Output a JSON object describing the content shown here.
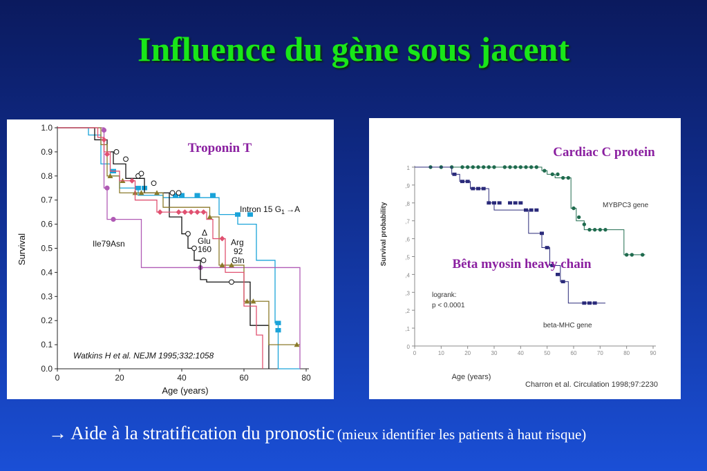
{
  "slide": {
    "title": "Influence du gène sous jacent",
    "footer_main": "→ Aide à la stratification du pronostic",
    "footer_sub": "(mieux identifier les patients à haut risque)"
  },
  "chart_data": [
    {
      "type": "line",
      "title": "Troponin T",
      "xlabel": "Age (years)",
      "ylabel": "Survival",
      "xlim": [
        0,
        80
      ],
      "ylim": [
        0,
        1
      ],
      "x_ticks": [
        0,
        20,
        40,
        60,
        80
      ],
      "x_tick_labels": [
        "0",
        "20",
        "40",
        "60",
        "80"
      ],
      "y_ticks": [
        0,
        0.1,
        0.2,
        0.3,
        0.4,
        0.5,
        0.6,
        0.7,
        0.8,
        0.9,
        1.0
      ],
      "y_tick_labels": [
        "0.0",
        "0.1",
        "0.2",
        "0.3",
        "0.4",
        "0.5",
        "0.6",
        "0.7",
        "0.8",
        "0.9",
        "1.0"
      ],
      "annotations": {
        "ile": "Ile79Asn",
        "delta": "Δ",
        "glu1": "Glu",
        "glu2": "160",
        "arg1": "Arg",
        "arg2": "92",
        "arg3": "Gln",
        "intron": "Intron 15 G",
        "intron_sub": "1",
        "intron_end": "→A",
        "citation": "Watkins H et al. NEJM 1995;332:1058"
      },
      "series": [
        {
          "name": "Intron 15 G1→A",
          "color": "#1aa3d9",
          "marker": "square",
          "x": [
            0,
            10,
            10,
            14,
            14,
            17,
            17,
            20,
            20,
            26,
            26,
            34,
            34,
            52,
            52,
            58,
            58,
            64,
            64,
            70,
            70,
            71,
            71,
            78
          ],
          "y": [
            1.0,
            1.0,
            0.97,
            0.97,
            0.85,
            0.85,
            0.8,
            0.8,
            0.75,
            0.75,
            0.72,
            0.72,
            0.71,
            0.71,
            0.64,
            0.64,
            0.6,
            0.6,
            0.45,
            0.45,
            0.19,
            0.19,
            0.0,
            0.0
          ],
          "marker_x": [
            18,
            26,
            28,
            38,
            40,
            45,
            50,
            58,
            62,
            71,
            71
          ],
          "marker_y": [
            0.82,
            0.75,
            0.75,
            0.72,
            0.72,
            0.72,
            0.72,
            0.64,
            0.64,
            0.19,
            0.16
          ]
        },
        {
          "name": "Ile79Asn",
          "color": "#b05ab5",
          "marker": "circle",
          "x": [
            0,
            15,
            15,
            16,
            16,
            18,
            18,
            27,
            27,
            78,
            78
          ],
          "y": [
            1.0,
            1.0,
            0.75,
            0.75,
            0.62,
            0.62,
            0.62,
            0.62,
            0.42,
            0.42,
            0.0
          ],
          "marker_x": [
            15,
            16,
            18,
            46
          ],
          "marker_y": [
            0.99,
            0.75,
            0.62,
            0.42
          ]
        },
        {
          "name": "Glu160",
          "color": "#111111",
          "marker": "open-circle",
          "x": [
            0,
            12,
            12,
            16,
            16,
            18,
            18,
            22,
            22,
            28,
            28,
            36,
            36,
            40,
            40,
            42,
            42,
            44,
            44,
            46,
            46,
            48,
            48,
            62,
            62,
            68,
            68
          ],
          "y": [
            1.0,
            1.0,
            0.95,
            0.95,
            0.9,
            0.9,
            0.85,
            0.85,
            0.79,
            0.79,
            0.73,
            0.73,
            0.63,
            0.63,
            0.56,
            0.56,
            0.5,
            0.5,
            0.45,
            0.45,
            0.37,
            0.37,
            0.36,
            0.36,
            0.18,
            0.18,
            0.0
          ],
          "marker_x": [
            19,
            22,
            26,
            27,
            31,
            37,
            39,
            42,
            44,
            47,
            56
          ],
          "marker_y": [
            0.9,
            0.87,
            0.8,
            0.81,
            0.77,
            0.73,
            0.73,
            0.56,
            0.5,
            0.45,
            0.36
          ]
        },
        {
          "name": "Arg92Gln",
          "color": "#8b7a2a",
          "marker": "triangle",
          "x": [
            0,
            14,
            14,
            16,
            16,
            20,
            20,
            34,
            34,
            49,
            49,
            52,
            52,
            60,
            60,
            68,
            68,
            78
          ],
          "y": [
            1.0,
            1.0,
            0.93,
            0.93,
            0.8,
            0.8,
            0.73,
            0.73,
            0.67,
            0.67,
            0.63,
            0.63,
            0.43,
            0.43,
            0.28,
            0.28,
            0.1,
            0.1
          ],
          "marker_x": [
            17,
            21,
            25,
            27,
            32,
            49,
            53,
            56,
            61,
            63,
            77
          ],
          "marker_y": [
            0.8,
            0.78,
            0.73,
            0.73,
            0.73,
            0.63,
            0.43,
            0.43,
            0.28,
            0.28,
            0.1
          ]
        },
        {
          "name": "Delta",
          "color": "#e05070",
          "marker": "diamond",
          "x": [
            0,
            13,
            13,
            15,
            15,
            17,
            17,
            20,
            20,
            25,
            25,
            32,
            32,
            48,
            48,
            50,
            50,
            54,
            54,
            60,
            60,
            64,
            64,
            66,
            66
          ],
          "y": [
            1.0,
            1.0,
            0.96,
            0.96,
            0.9,
            0.9,
            0.82,
            0.82,
            0.78,
            0.78,
            0.7,
            0.7,
            0.65,
            0.65,
            0.62,
            0.62,
            0.54,
            0.54,
            0.4,
            0.4,
            0.26,
            0.26,
            0.14,
            0.14,
            0.0
          ],
          "marker_x": [
            15,
            16,
            24,
            33,
            39,
            41,
            43,
            45,
            47,
            53
          ],
          "marker_y": [
            0.95,
            0.89,
            0.78,
            0.65,
            0.65,
            0.65,
            0.65,
            0.65,
            0.65,
            0.54
          ]
        }
      ]
    },
    {
      "type": "line",
      "title": "Cardiac C protein",
      "overlay_label": "Bêta myosin heavy chain",
      "xlabel": "Age  (years)",
      "ylabel": "Survival probability",
      "xlim": [
        0,
        90
      ],
      "ylim": [
        0,
        1
      ],
      "x_ticks": [
        0,
        10,
        20,
        30,
        40,
        50,
        60,
        70,
        80,
        90
      ],
      "x_tick_labels": [
        "0",
        "10",
        "20",
        "30",
        "40",
        "50",
        "60",
        "70",
        "80",
        "90"
      ],
      "y_ticks": [
        0,
        0.1,
        0.2,
        0.3,
        0.4,
        0.5,
        0.6,
        0.7,
        0.8,
        0.9,
        1.0
      ],
      "y_tick_labels": [
        "0",
        ",1",
        ",2",
        ",3",
        ",4",
        ",5",
        ",6",
        ",7",
        ",8",
        ",9",
        "1"
      ],
      "annotations": {
        "mybpc3": "MYBPC3 gene",
        "betamhc": "beta-MHC gene",
        "logrank1": "logrank:",
        "logrank2": "p < 0.0001",
        "citation": "Charron et al. Circulation 1998;97:2230"
      },
      "series": [
        {
          "name": "MYBPC3 gene",
          "color": "#1f6b4e",
          "marker": "circle",
          "x": [
            0,
            48,
            48,
            50,
            50,
            53,
            53,
            59,
            59,
            61,
            61,
            64,
            64,
            79,
            79,
            87
          ],
          "y": [
            1.0,
            1.0,
            0.98,
            0.98,
            0.96,
            0.96,
            0.94,
            0.94,
            0.77,
            0.77,
            0.7,
            0.7,
            0.65,
            0.65,
            0.51,
            0.51
          ],
          "marker_x": [
            6,
            10,
            14,
            18,
            20,
            22,
            24,
            26,
            28,
            30,
            34,
            36,
            38,
            40,
            42,
            44,
            46,
            49,
            52,
            54,
            56,
            58,
            60,
            62,
            64,
            66,
            68,
            70,
            72,
            80,
            82,
            86
          ],
          "marker_y": [
            1,
            1,
            1,
            1,
            1,
            1,
            1,
            1,
            1,
            1,
            1,
            1,
            1,
            1,
            1,
            1,
            1,
            0.98,
            0.96,
            0.96,
            0.94,
            0.94,
            0.77,
            0.72,
            0.68,
            0.65,
            0.65,
            0.65,
            0.65,
            0.51,
            0.51,
            0.51
          ]
        },
        {
          "name": "beta-MHC gene",
          "color": "#2a2a7a",
          "marker": "square",
          "x": [
            0,
            14,
            14,
            17,
            17,
            21,
            21,
            28,
            28,
            30,
            30,
            43,
            43,
            48,
            48,
            51,
            51,
            55,
            55,
            58,
            58,
            72
          ],
          "y": [
            1.0,
            1.0,
            0.96,
            0.96,
            0.92,
            0.92,
            0.88,
            0.88,
            0.8,
            0.8,
            0.76,
            0.76,
            0.63,
            0.63,
            0.55,
            0.55,
            0.45,
            0.45,
            0.36,
            0.36,
            0.24,
            0.24
          ],
          "marker_x": [
            15,
            18,
            20,
            22,
            24,
            26,
            28,
            30,
            32,
            36,
            38,
            40,
            42,
            44,
            46,
            48,
            50,
            52,
            54,
            56,
            64,
            66,
            68
          ],
          "marker_y": [
            0.96,
            0.92,
            0.92,
            0.88,
            0.88,
            0.88,
            0.8,
            0.8,
            0.8,
            0.8,
            0.8,
            0.8,
            0.76,
            0.76,
            0.76,
            0.63,
            0.55,
            0.45,
            0.4,
            0.36,
            0.24,
            0.24,
            0.24
          ]
        }
      ]
    }
  ]
}
